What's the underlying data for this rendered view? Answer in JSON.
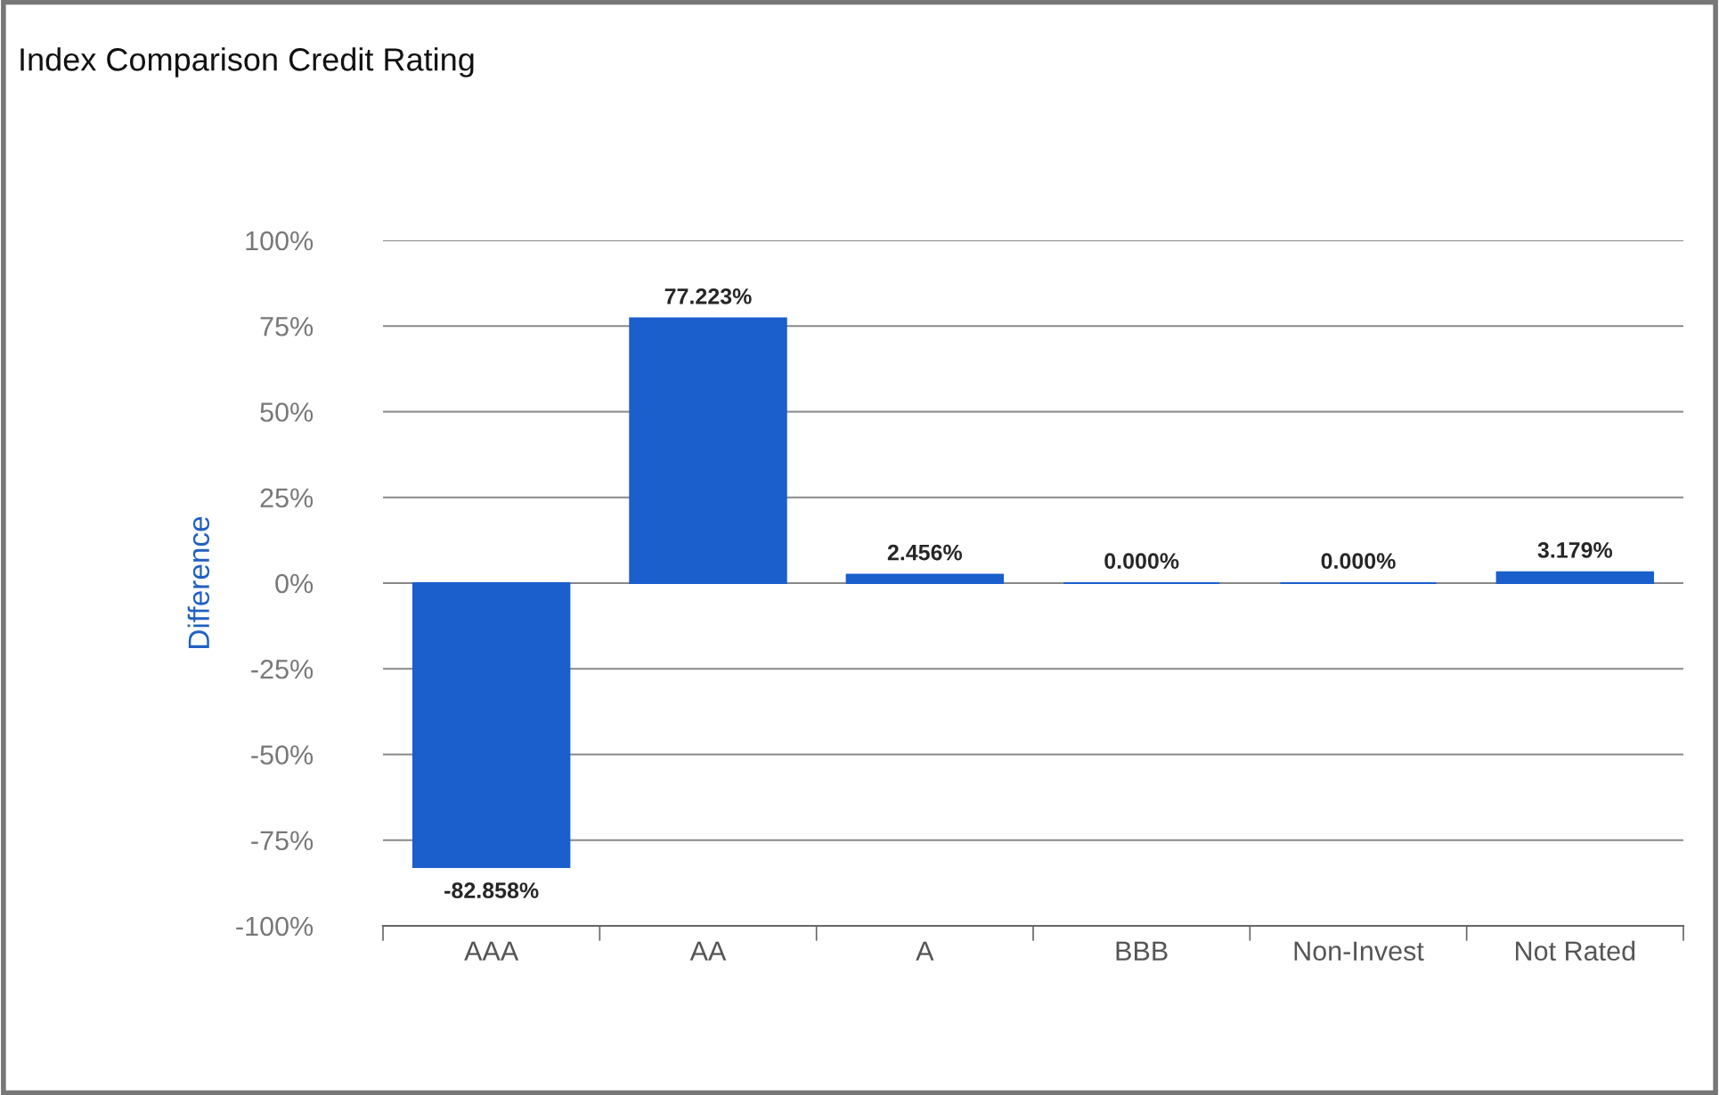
{
  "chart_data": {
    "type": "bar",
    "title": "Index Comparison Credit Rating",
    "ylabel": "Difference",
    "categories": [
      "AAA",
      "AA",
      "A",
      "BBB",
      "Non-Invest",
      "Not Rated"
    ],
    "values": [
      -82.858,
      77.223,
      2.456,
      0.0,
      0.0,
      3.179
    ],
    "value_labels": [
      "-82.858%",
      "77.223%",
      "2.456%",
      "0.000%",
      "0.000%",
      "3.179%"
    ],
    "color": "#1a5fcc",
    "ylim": [
      -100,
      100
    ],
    "yticks": [
      {
        "value": -100,
        "label": "-100%"
      },
      {
        "value": -75,
        "label": "-75%"
      },
      {
        "value": -50,
        "label": "-50%"
      },
      {
        "value": -25,
        "label": "-25%"
      },
      {
        "value": 0,
        "label": "0%"
      },
      {
        "value": 25,
        "label": "25%"
      },
      {
        "value": 50,
        "label": "50%"
      },
      {
        "value": 75,
        "label": "75%"
      },
      {
        "value": 100,
        "label": "100%"
      }
    ],
    "grid": "y"
  }
}
